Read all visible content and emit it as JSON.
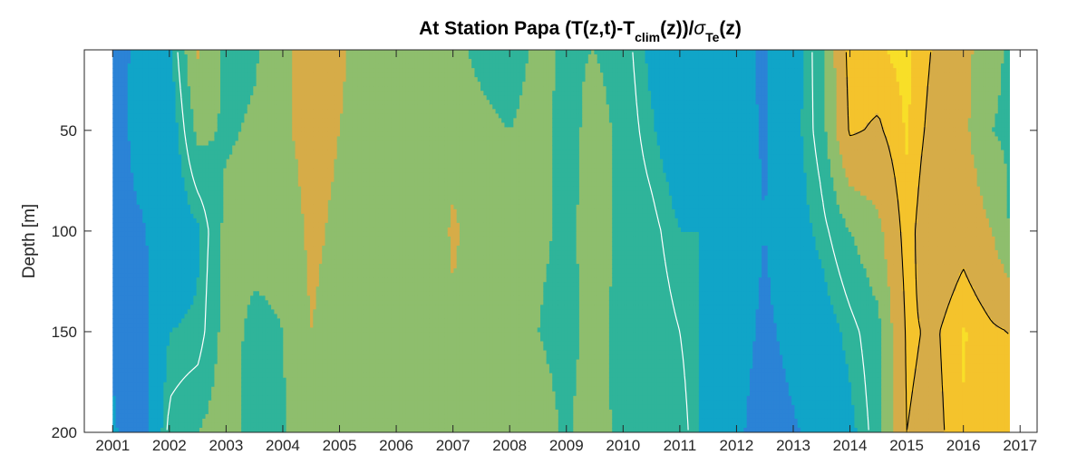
{
  "chart_data": {
    "type": "heatmap",
    "title": {
      "main": "At Station Papa (T(z,t)-T",
      "sub1": "clim",
      "mid": "(z))/",
      "sigma": "σ",
      "sub2": "Te",
      "end": "(z)"
    },
    "ylabel": "Depth [m]",
    "xlabel": "",
    "x_ticks": [
      "2001",
      "2002",
      "2003",
      "2004",
      "2005",
      "2006",
      "2007",
      "2008",
      "2009",
      "2010",
      "2011",
      "2012",
      "2013",
      "2014",
      "2015",
      "2016",
      "2017"
    ],
    "y_ticks": [
      "50",
      "100",
      "150",
      "200"
    ],
    "xlim": [
      2000.5,
      2017.3
    ],
    "ylim": [
      200,
      10
    ],
    "y_reversed": true,
    "grid": false,
    "colors": {
      "level_neg3": "#1a6fe0",
      "level_neg2": "#2b83d6",
      "level_neg1": "#10a5c8",
      "level_0": "#2fb49a",
      "level_1": "#8ebe6d",
      "level_2": "#d6ac48",
      "level_3": "#f4c32c",
      "level_4": "#f8df28",
      "contour_zero": "#ffffff",
      "contour_positive": "#000000"
    },
    "column_profiles": {
      "x": [
        2000.5,
        2001.0,
        2001.5,
        2002.0,
        2002.5,
        2003.0,
        2003.5,
        2004.0,
        2004.5,
        2005.0,
        2005.5,
        2006.0,
        2006.5,
        2007.0,
        2007.5,
        2008.0,
        2008.5,
        2009.0,
        2009.5,
        2010.0,
        2010.5,
        2011.0,
        2011.5,
        2012.0,
        2012.5,
        2013.0,
        2013.5,
        2014.0,
        2014.5,
        2015.0,
        2015.5,
        2016.0,
        2016.5,
        2016.8
      ],
      "depths": [
        10,
        50,
        100,
        150,
        200
      ],
      "values": [
        [
          -2.5,
          -2.5,
          -2.5,
          -2.5,
          -2.5
        ],
        [
          -2.2,
          -2.0,
          -1.8,
          -1.6,
          -1.4
        ],
        [
          -1.0,
          -1.1,
          -1.6,
          -2.0,
          -2.0
        ],
        [
          -0.6,
          -0.9,
          -1.0,
          -0.4,
          0.2
        ],
        [
          1.5,
          0.8,
          -0.5,
          -0.3,
          0.6
        ],
        [
          0.4,
          0.5,
          0.8,
          0.9,
          1.0
        ],
        [
          0.5,
          0.7,
          0.9,
          0.4,
          0.2
        ],
        [
          1.1,
          1.2,
          0.8,
          0.6,
          0.5
        ],
        [
          1.9,
          1.8,
          1.6,
          1.4,
          1.1
        ],
        [
          1.6,
          1.4,
          1.2,
          1.0,
          0.8
        ],
        [
          0.8,
          0.9,
          1.0,
          1.0,
          0.9
        ],
        [
          1.1,
          1.0,
          0.9,
          0.8,
          0.7
        ],
        [
          0.6,
          0.7,
          0.8,
          1.0,
          1.2
        ],
        [
          0.8,
          1.2,
          1.5,
          1.3,
          1.1
        ],
        [
          0.4,
          0.8,
          1.1,
          1.0,
          0.8
        ],
        [
          0.2,
          0.6,
          0.8,
          0.9,
          0.9
        ],
        [
          0.8,
          0.9,
          0.7,
          0.6,
          0.9
        ],
        [
          0.5,
          0.3,
          0.5,
          0.4,
          0.5
        ],
        [
          0.6,
          0.9,
          0.8,
          0.8,
          1.0
        ],
        [
          0.3,
          0.4,
          0.5,
          0.4,
          0.3
        ],
        [
          -0.6,
          -0.3,
          0.2,
          0.4,
          0.6
        ],
        [
          -1.2,
          -1.0,
          -0.4,
          0.0,
          0.3
        ],
        [
          -1.5,
          -0.8,
          -0.4,
          -0.6,
          -0.7
        ],
        [
          -1.3,
          -1.2,
          -1.0,
          -1.1,
          -1.3
        ],
        [
          -1.6,
          -1.6,
          -1.5,
          -1.7,
          -2.0
        ],
        [
          -0.8,
          -0.7,
          -0.8,
          -1.2,
          -1.6
        ],
        [
          0.4,
          0.3,
          -0.2,
          -0.8,
          -1.2
        ],
        [
          2.6,
          2.4,
          0.6,
          -0.2,
          -0.6
        ],
        [
          2.7,
          2.2,
          1.2,
          0.4,
          0.3
        ],
        [
          2.9,
          2.8,
          2.6,
          2.4,
          2.3
        ],
        [
          2.2,
          2.0,
          1.6,
          2.2,
          2.1
        ],
        [
          1.7,
          1.6,
          2.0,
          2.8,
          2.7
        ],
        [
          0.8,
          0.6,
          1.4,
          2.4,
          2.5
        ],
        [
          0.5,
          0.5,
          0.6,
          2.3,
          2.4
        ]
      ]
    }
  }
}
